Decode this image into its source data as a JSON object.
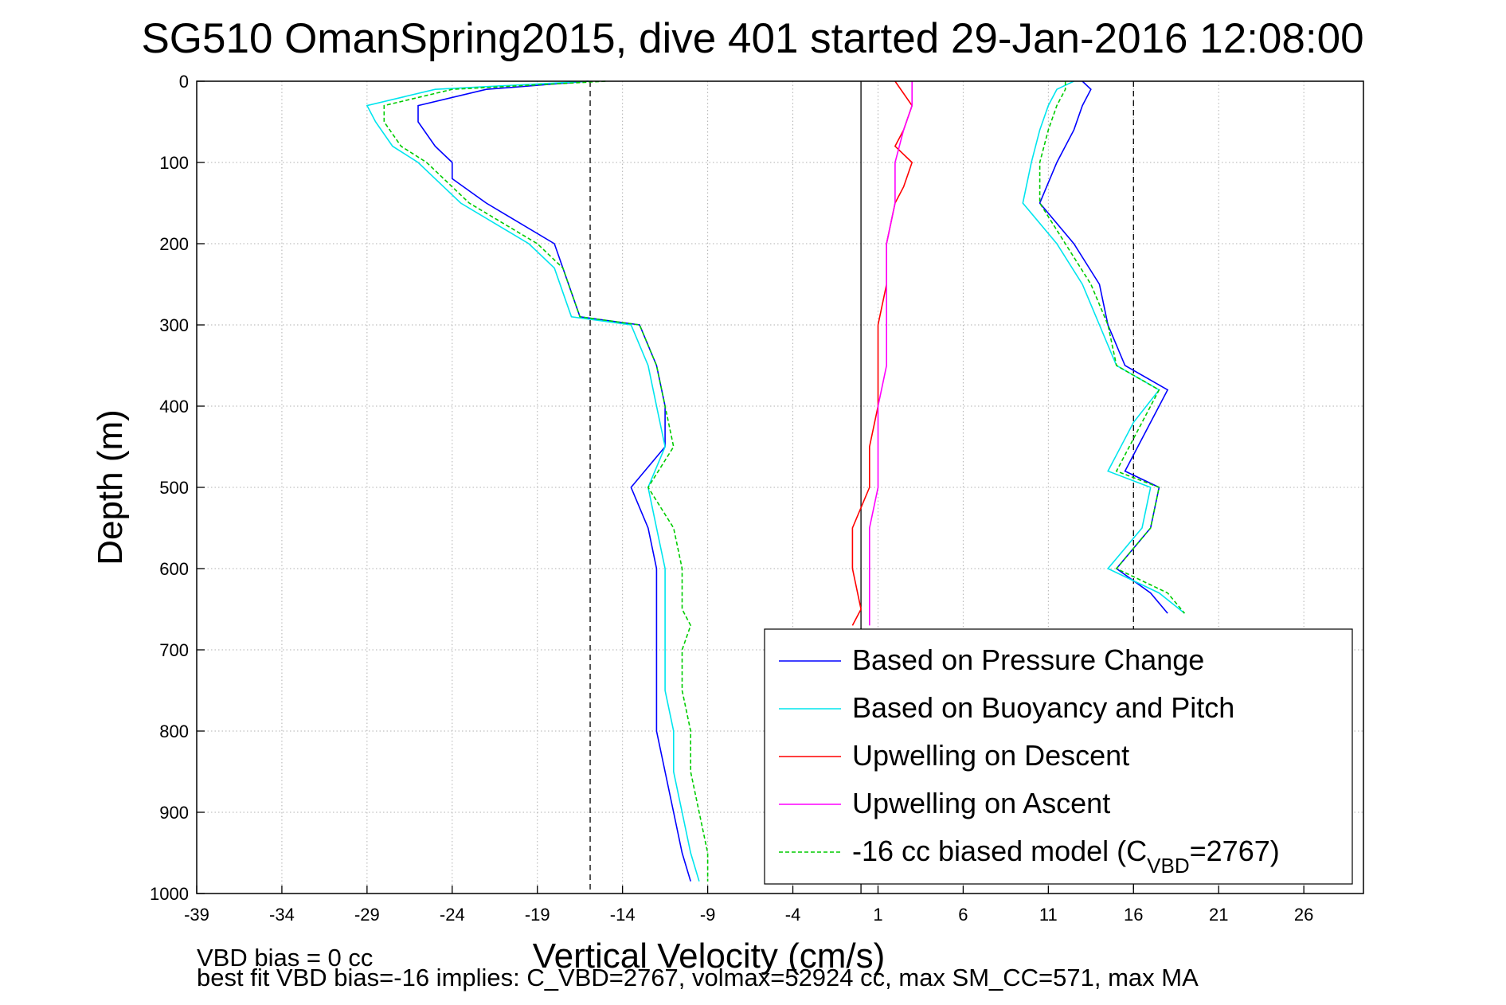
{
  "chart_data": {
    "type": "line",
    "title": "SG510 OmanSpring2015, dive 401 started 29-Jan-2016 12:08:00",
    "xlabel": "Vertical Velocity (cm/s)",
    "ylabel": "Depth (m)",
    "xlim": [
      -39,
      29.5
    ],
    "ylim": [
      0,
      1000
    ],
    "y_reversed": true,
    "grid": true,
    "legend_position": "bottom-right",
    "x_ticks": [
      -39,
      -34,
      -29,
      -24,
      -19,
      -14,
      -9,
      -4,
      1,
      6,
      11,
      16,
      21,
      26
    ],
    "y_ticks": [
      0,
      100,
      200,
      300,
      400,
      500,
      600,
      700,
      800,
      900,
      1000
    ],
    "reference_lines": [
      {
        "style": "dashed",
        "x": -15.9
      },
      {
        "style": "solid",
        "x": 0
      },
      {
        "style": "dashed",
        "x": 16
      }
    ],
    "series": [
      {
        "name": "Based on Pressure Change",
        "color": "#0000ff",
        "segments": [
          {
            "depth": [
              0,
              10,
              30,
              50,
              80,
              100,
              120,
              150,
              200,
              230,
              260,
              290,
              300,
              350,
              400,
              450,
              500,
              550,
              600,
              650,
              700,
              750,
              800,
              850,
              900,
              950,
              985
            ],
            "velocity": [
              -16,
              -22,
              -26,
              -26,
              -25,
              -24,
              -24,
              -22,
              -18,
              -17.5,
              -17,
              -16.5,
              -13,
              -12,
              -11.5,
              -11.5,
              -13.5,
              -12.5,
              -12,
              -12,
              -12,
              -12,
              -12,
              -11.5,
              -11,
              -10.5,
              -10
            ]
          },
          {
            "depth": [
              0,
              10,
              30,
              60,
              100,
              150,
              200,
              250,
              300,
              350,
              380,
              420,
              480,
              500,
              550,
              600,
              630,
              655
            ],
            "velocity": [
              13,
              13.5,
              13,
              12.5,
              11.5,
              10.5,
              12.5,
              14,
              14.5,
              15.5,
              18,
              17,
              15.5,
              17.5,
              17,
              15,
              17,
              18
            ]
          }
        ]
      },
      {
        "name": "Based on Buoyancy and Pitch",
        "color": "#00e5ee",
        "segments": [
          {
            "depth": [
              0,
              10,
              30,
              50,
              80,
              100,
              120,
              150,
              200,
              230,
              260,
              290,
              300,
              350,
              400,
              450,
              500,
              550,
              600,
              650,
              700,
              750,
              800,
              850,
              900,
              950,
              985
            ],
            "velocity": [
              -16,
              -25,
              -29,
              -28.5,
              -27.5,
              -26,
              -25,
              -23.5,
              -19.5,
              -18,
              -17.5,
              -17,
              -13.5,
              -12.5,
              -12,
              -11.5,
              -12.5,
              -12,
              -11.5,
              -11.5,
              -11.5,
              -11.5,
              -11,
              -11,
              -10.5,
              -10,
              -9.5
            ]
          },
          {
            "depth": [
              0,
              10,
              30,
              60,
              100,
              150,
              200,
              250,
              300,
              350,
              380,
              420,
              480,
              500,
              550,
              600,
              630,
              655
            ],
            "velocity": [
              12.5,
              11.5,
              11,
              10.5,
              10,
              9.5,
              11.5,
              13,
              14,
              15,
              17.5,
              16,
              14.5,
              17,
              16.5,
              14.5,
              17.5,
              19
            ]
          }
        ]
      },
      {
        "name": "Upwelling on Descent",
        "color": "#ff0000",
        "segments": [
          {
            "depth": [
              0,
              30,
              60,
              80,
              100,
              130,
              150,
              200,
              250,
              300,
              350,
              400,
              450,
              500,
              550,
              600,
              650,
              670
            ],
            "velocity": [
              2,
              3,
              2.5,
              2,
              3,
              2.5,
              2,
              1.5,
              1.5,
              1,
              1,
              1,
              0.5,
              0.5,
              -0.5,
              -0.5,
              0,
              -0.5
            ]
          }
        ]
      },
      {
        "name": "Upwelling on Ascent",
        "color": "#ff00ff",
        "segments": [
          {
            "depth": [
              0,
              30,
              60,
              100,
              150,
              200,
              250,
              300,
              350,
              400,
              450,
              500,
              550,
              600,
              650,
              670
            ],
            "velocity": [
              3,
              3,
              2.5,
              2,
              2,
              1.5,
              1.5,
              1.5,
              1.5,
              1,
              1,
              1,
              0.5,
              0.5,
              0.5,
              0.5
            ]
          }
        ]
      },
      {
        "name": "-16 cc biased model (C_VBD=2767)",
        "color": "#00cc00",
        "dashed": true,
        "segments": [
          {
            "depth": [
              0,
              10,
              30,
              50,
              80,
              100,
              120,
              150,
              200,
              230,
              260,
              290,
              300,
              350,
              400,
              450,
              500,
              550,
              600,
              650,
              670,
              700,
              750,
              800,
              850,
              900,
              950,
              985
            ],
            "velocity": [
              -15,
              -24,
              -28,
              -28,
              -27,
              -25.5,
              -24.5,
              -23,
              -19,
              -17.5,
              -17,
              -16.5,
              -13,
              -12,
              -11.5,
              -11,
              -12.5,
              -11,
              -10.5,
              -10.5,
              -10,
              -10.5,
              -10.5,
              -10,
              -10,
              -9.5,
              -9,
              -9
            ]
          },
          {
            "depth": [
              0,
              10,
              30,
              60,
              100,
              150,
              200,
              250,
              300,
              350,
              380,
              420,
              480,
              500,
              550,
              600,
              630,
              655
            ],
            "velocity": [
              12,
              12,
              11.5,
              11,
              10.5,
              10.5,
              12,
              13.5,
              14.5,
              15,
              17.5,
              16.5,
              15,
              17.5,
              17,
              15,
              18,
              19
            ]
          }
        ]
      }
    ],
    "legend": {
      "entries": [
        "Based on Pressure Change",
        "Based on Buoyancy and Pitch",
        "Upwelling on Descent",
        "Upwelling on Ascent"
      ],
      "last_entry": {
        "prefix": "-16 cc biased model (C",
        "subscript": "VBD",
        "suffix": "=2767)"
      }
    },
    "notes": [
      "VBD bias = 0 cc",
      "best fit VBD bias=-16 implies: C_VBD=2767, volmax=52924 cc, max SM_CC=571, max MA"
    ]
  }
}
